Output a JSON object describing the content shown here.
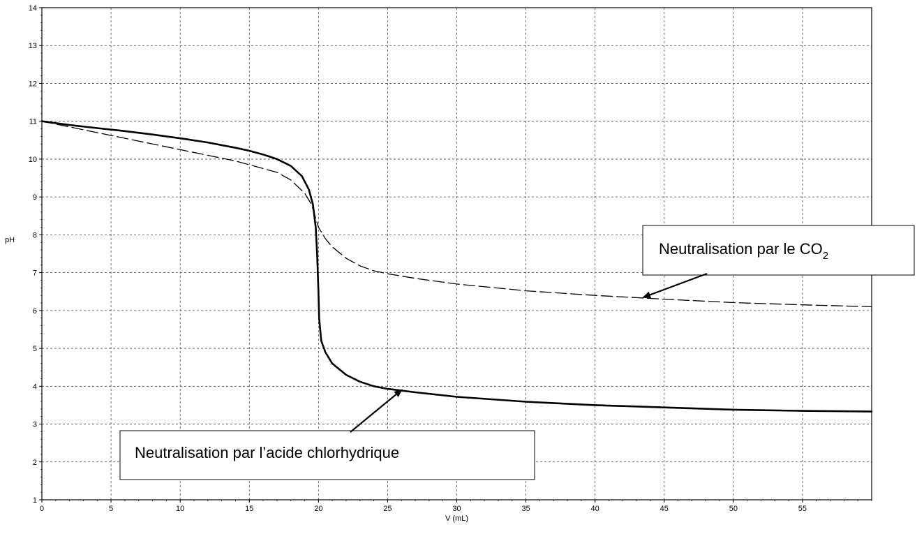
{
  "chart_data": {
    "type": "line",
    "title": "",
    "xlabel": "V (mL)",
    "ylabel": "pH",
    "xlim": [
      0,
      60
    ],
    "ylim": [
      1,
      14
    ],
    "x_ticks": [
      0,
      5,
      10,
      15,
      20,
      25,
      30,
      35,
      40,
      45,
      50,
      55
    ],
    "y_ticks": [
      1,
      2,
      3,
      4,
      5,
      6,
      7,
      8,
      9,
      10,
      11,
      12,
      13,
      14
    ],
    "grid": true,
    "series": [
      {
        "style": "solid",
        "color": "#000000",
        "points": [
          [
            0,
            11.0
          ],
          [
            2,
            10.9
          ],
          [
            4,
            10.82
          ],
          [
            6,
            10.74
          ],
          [
            8,
            10.65
          ],
          [
            10,
            10.55
          ],
          [
            12,
            10.44
          ],
          [
            14,
            10.3
          ],
          [
            15,
            10.22
          ],
          [
            16,
            10.12
          ],
          [
            17,
            10.0
          ],
          [
            18,
            9.82
          ],
          [
            18.8,
            9.55
          ],
          [
            19.3,
            9.2
          ],
          [
            19.6,
            8.8
          ],
          [
            19.8,
            8.2
          ],
          [
            19.9,
            7.5
          ],
          [
            20.0,
            6.5
          ],
          [
            20.05,
            5.8
          ],
          [
            20.2,
            5.2
          ],
          [
            20.5,
            4.9
          ],
          [
            21,
            4.6
          ],
          [
            22,
            4.3
          ],
          [
            23,
            4.12
          ],
          [
            24,
            4.0
          ],
          [
            25,
            3.93
          ],
          [
            27,
            3.84
          ],
          [
            30,
            3.72
          ],
          [
            35,
            3.59
          ],
          [
            40,
            3.5
          ],
          [
            45,
            3.44
          ],
          [
            50,
            3.38
          ],
          [
            55,
            3.35
          ],
          [
            60,
            3.33
          ]
        ]
      },
      {
        "style": "dashed",
        "color": "#000000",
        "points": [
          [
            0,
            11.0
          ],
          [
            2,
            10.85
          ],
          [
            4,
            10.7
          ],
          [
            6,
            10.55
          ],
          [
            8,
            10.4
          ],
          [
            10,
            10.25
          ],
          [
            12,
            10.1
          ],
          [
            14,
            9.95
          ],
          [
            16,
            9.75
          ],
          [
            17,
            9.65
          ],
          [
            18,
            9.45
          ],
          [
            19,
            9.1
          ],
          [
            19.5,
            8.8
          ],
          [
            20,
            8.2
          ],
          [
            20.5,
            7.9
          ],
          [
            21,
            7.68
          ],
          [
            22,
            7.38
          ],
          [
            23,
            7.18
          ],
          [
            24,
            7.05
          ],
          [
            25,
            6.97
          ],
          [
            27,
            6.85
          ],
          [
            30,
            6.7
          ],
          [
            35,
            6.52
          ],
          [
            40,
            6.4
          ],
          [
            45,
            6.3
          ],
          [
            50,
            6.21
          ],
          [
            55,
            6.15
          ],
          [
            60,
            6.1
          ]
        ]
      }
    ],
    "annotations": [
      {
        "text": "Neutralisation par le CO",
        "subscript": "2",
        "arrow_to": [
          43.5,
          6.35
        ]
      },
      {
        "text": "Neutralisation par l’acide chlorhydrique",
        "arrow_to": [
          26,
          3.9
        ]
      }
    ]
  }
}
